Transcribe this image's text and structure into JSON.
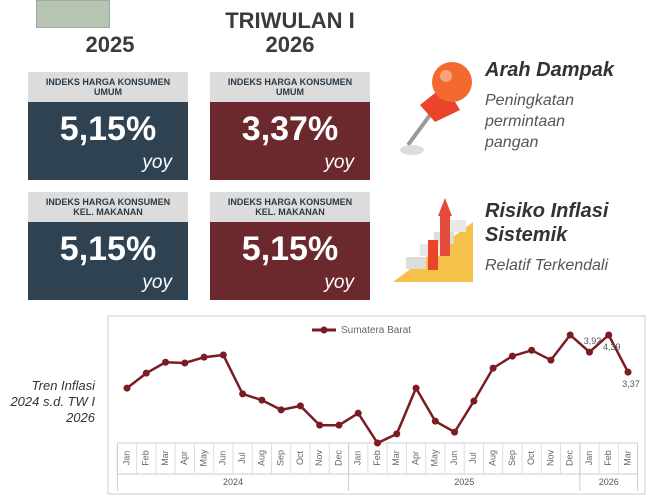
{
  "headers": {
    "left": "2025",
    "right": "TRIWULAN I 2026"
  },
  "cards": [
    {
      "label": "INDEKS HARGA KONSUMEN UMUM",
      "value": "5,15%",
      "unit": "yoy"
    },
    {
      "label": "INDEKS HARGA KONSUMEN UMUM",
      "value": "3,37%",
      "unit": "yoy"
    },
    {
      "label": "INDEKS HARGA KONSUMEN KEL. MAKANAN",
      "value": "5,15%",
      "unit": "yoy"
    },
    {
      "label": "INDEKS HARGA KONSUMEN KEL. MAKANAN",
      "value": "5,15%",
      "unit": "yoy"
    }
  ],
  "impact": {
    "title": "Arah Dampak",
    "text": "Peningkatan permintaan pangan"
  },
  "risk": {
    "title": "Risiko Inflasi Sistemik",
    "text": "Relatif Terkendali"
  },
  "chart_data": {
    "type": "line",
    "side_label": "Tren Inflasi 2024 s.d. TW I 2026",
    "years": [
      {
        "label": "2024",
        "months": [
          "Jan",
          "Feb",
          "Mar",
          "Apr",
          "May",
          "Jun",
          "Jul",
          "Aug",
          "Sep",
          "Oct",
          "Nov",
          "Dec"
        ]
      },
      {
        "label": "2025",
        "months": [
          "Jan",
          "Feb",
          "Mar",
          "Apr",
          "May",
          "Jun",
          "Jul",
          "Aug",
          "Sep",
          "Oct",
          "Nov",
          "Dec"
        ]
      },
      {
        "label": "2026",
        "months": [
          "Jan",
          "Feb",
          "Mar"
        ]
      }
    ],
    "series": [
      {
        "name": "Sumatera Barat",
        "color": "#7b1c22",
        "values": [
          2.93,
          3.34,
          3.64,
          3.62,
          3.78,
          3.84,
          2.77,
          2.6,
          2.33,
          2.44,
          1.91,
          1.91,
          2.24,
          1.42,
          1.67,
          2.93,
          2.02,
          1.72,
          2.57,
          3.48,
          3.81,
          3.97,
          3.7,
          4.39,
          3.92,
          4.39,
          3.37
        ],
        "value_labels": [
          null,
          null,
          null,
          null,
          null,
          null,
          null,
          null,
          null,
          null,
          null,
          null,
          null,
          null,
          null,
          null,
          null,
          null,
          null,
          null,
          null,
          null,
          null,
          null,
          "3,92",
          "4,39",
          "3,37"
        ]
      }
    ]
  }
}
